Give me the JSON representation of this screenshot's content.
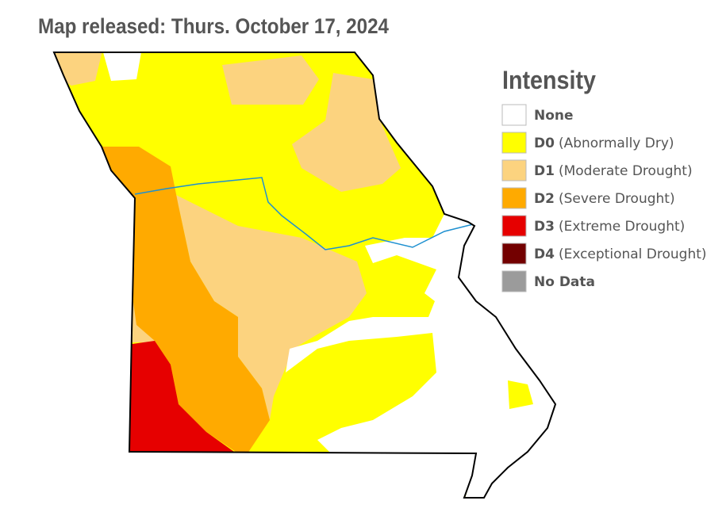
{
  "header": {
    "title": "Map released: Thurs. October 17, 2024"
  },
  "legend": {
    "title": "Intensity",
    "items": [
      {
        "label": "None",
        "color": "#ffffff"
      },
      {
        "code": "D0",
        "description": "(Abnormally Dry)",
        "color": "#ffff00"
      },
      {
        "code": "D1",
        "description": "(Moderate Drought)",
        "color": "#fcd37f"
      },
      {
        "code": "D2",
        "description": "(Severe Drought)",
        "color": "#ffaa00"
      },
      {
        "code": "D3",
        "description": "(Extreme Drought)",
        "color": "#e60000"
      },
      {
        "code": "D4",
        "description": "(Exceptional Drought)",
        "color": "#730000"
      },
      {
        "label": "No Data",
        "color": "#9b9b9b"
      }
    ]
  }
}
